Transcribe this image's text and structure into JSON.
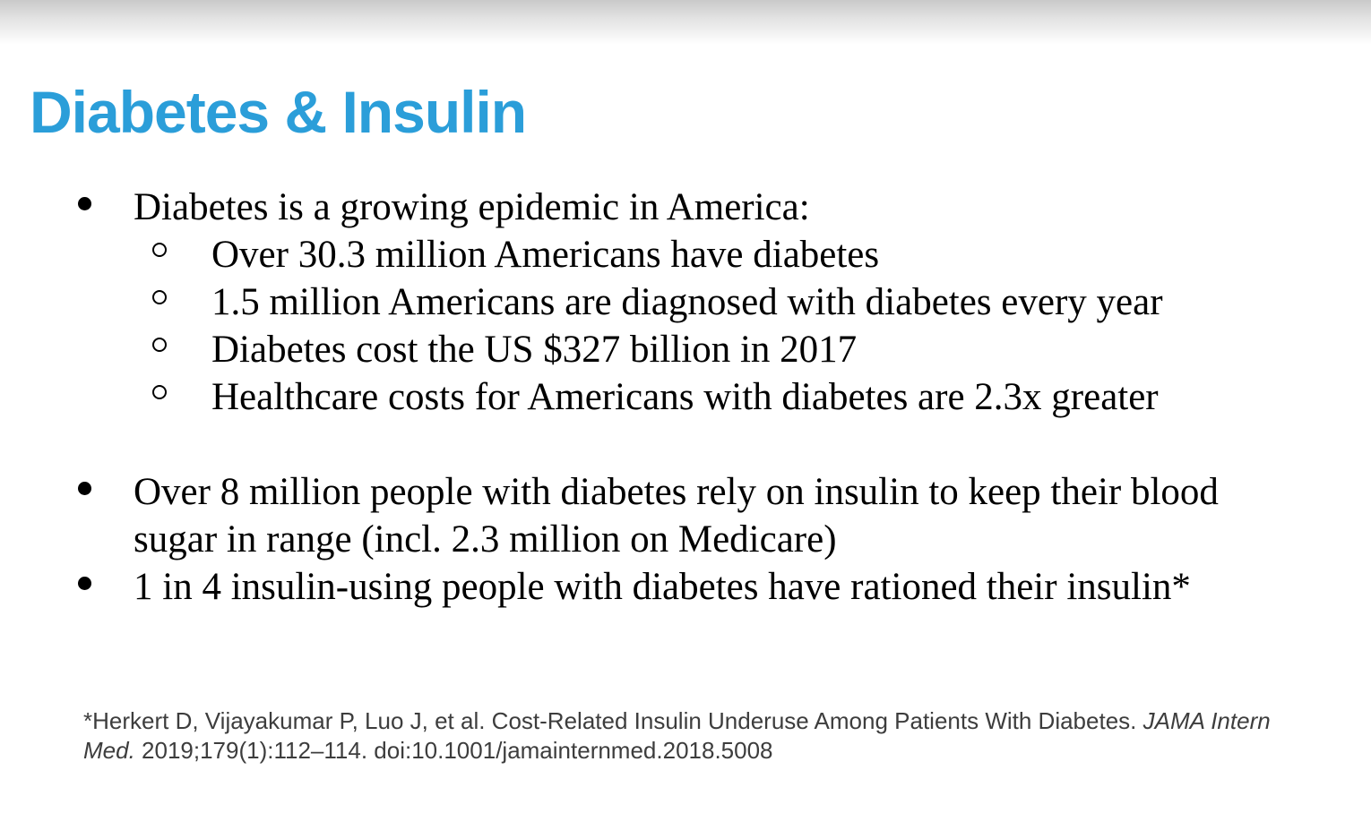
{
  "slide": {
    "title": "Diabetes & Insulin",
    "bullets": [
      {
        "text": "Diabetes is a growing epidemic in America:",
        "children": [
          "Over 30.3 million Americans have diabetes",
          "1.5 million Americans are diagnosed with diabetes every year",
          "Diabetes cost the US $327 billion in 2017",
          "Healthcare costs for Americans with diabetes are 2.3x greater"
        ]
      },
      {
        "text": "Over 8 million people with diabetes rely on insulin to keep their blood sugar in range (incl. 2.3 million on Medicare)",
        "children": []
      },
      {
        "text": "1 in 4 insulin-using people with diabetes have rationed their insulin*",
        "children": []
      }
    ],
    "footnote": {
      "prefix": "*Herkert D, Vijayakumar P, Luo J, et al. Cost-Related Insulin Underuse Among Patients With Diabetes. ",
      "italic": "JAMA Intern Med.",
      "suffix": " 2019;179(1):112–114. doi:10.1001/jamainternmed.2018.5008"
    },
    "colors": {
      "accent_blue": "#2b9ed9",
      "footnote_gray": "#3d3d3d",
      "gradient_top_gray": "#c9c9c9"
    }
  }
}
